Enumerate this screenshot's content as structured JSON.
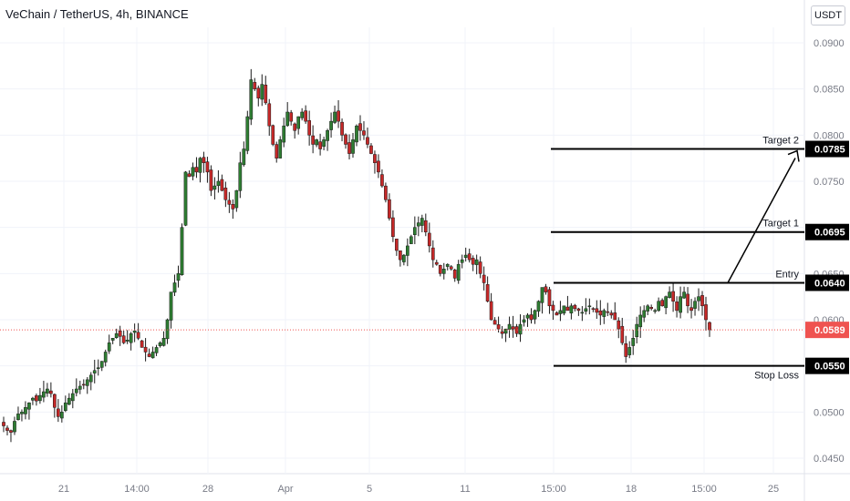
{
  "header": {
    "title": "VeChain / TetherUS, 4h, BINANCE",
    "currency_button": "USDT"
  },
  "colors": {
    "up": "#26a69a",
    "down": "#ef5350",
    "up_body": "#2e7d32",
    "down_body": "#c62828",
    "grid": "#f0f3fa",
    "axis_text": "#787b86",
    "current_price": "#ef5350",
    "label_bg": "#000000",
    "label_text": "#ffffff"
  },
  "chart_data": {
    "type": "candlestick",
    "symbol": "VeChain / TetherUS",
    "interval": "4h",
    "exchange": "BINANCE",
    "y_ticks": [
      "0.0900",
      "0.0850",
      "0.0800",
      "0.0750",
      "0.0700",
      "0.0650",
      "0.0600",
      "0.0550",
      "0.0500",
      "0.0450"
    ],
    "x_ticks": [
      "21",
      "14:00",
      "28",
      "Apr",
      "5",
      "11",
      "15:00",
      "18",
      "15:00",
      "25"
    ],
    "current_price": "0.0589",
    "levels": [
      {
        "name": "Target 2",
        "price": "0.0785"
      },
      {
        "name": "Target 1",
        "price": "0.0695"
      },
      {
        "name": "Entry",
        "price": "0.0640"
      },
      {
        "name": "Stop Loss",
        "price": "0.0550"
      }
    ],
    "path_prices": [
      0.064,
      0.0785
    ],
    "close_path": [
      0.0485,
      0.048,
      0.0478,
      0.049,
      0.0498,
      0.05,
      0.0505,
      0.051,
      0.0515,
      0.0512,
      0.0518,
      0.0522,
      0.0525,
      0.052,
      0.0505,
      0.0495,
      0.05,
      0.051,
      0.0515,
      0.052,
      0.0525,
      0.0528,
      0.053,
      0.0535,
      0.054,
      0.0545,
      0.0548,
      0.0555,
      0.0565,
      0.0575,
      0.058,
      0.0585,
      0.0582,
      0.0575,
      0.0578,
      0.0585,
      0.0588,
      0.058,
      0.057,
      0.0565,
      0.056,
      0.0565,
      0.057,
      0.0575,
      0.058,
      0.06,
      0.063,
      0.064,
      0.065,
      0.07,
      0.076,
      0.0755,
      0.0765,
      0.076,
      0.0775,
      0.077,
      0.076,
      0.074,
      0.0745,
      0.075,
      0.074,
      0.073,
      0.0725,
      0.072,
      0.074,
      0.077,
      0.0785,
      0.082,
      0.086,
      0.085,
      0.084,
      0.0855,
      0.0835,
      0.081,
      0.079,
      0.0775,
      0.0795,
      0.081,
      0.0825,
      0.0815,
      0.0805,
      0.082,
      0.0825,
      0.0815,
      0.08,
      0.079,
      0.0795,
      0.0785,
      0.0795,
      0.0805,
      0.0815,
      0.0825,
      0.0815,
      0.08,
      0.079,
      0.078,
      0.0795,
      0.081,
      0.0805,
      0.08,
      0.079,
      0.078,
      0.077,
      0.076,
      0.0745,
      0.073,
      0.071,
      0.069,
      0.0675,
      0.0665,
      0.067,
      0.068,
      0.069,
      0.07,
      0.0705,
      0.071,
      0.0695,
      0.068,
      0.0665,
      0.066,
      0.065,
      0.0655,
      0.066,
      0.0655,
      0.0645,
      0.066,
      0.0665,
      0.067,
      0.0665,
      0.066,
      0.0665,
      0.065,
      0.064,
      0.062,
      0.06,
      0.0595,
      0.059,
      0.0585,
      0.059,
      0.0595,
      0.059,
      0.0585,
      0.0595,
      0.06,
      0.0605,
      0.06,
      0.061,
      0.062,
      0.0635,
      0.063,
      0.0615,
      0.061,
      0.0605,
      0.061,
      0.0615,
      0.061,
      0.0615,
      0.0612,
      0.061,
      0.0608,
      0.0612,
      0.0615,
      0.0612,
      0.0608,
      0.0605,
      0.061,
      0.0608,
      0.0605,
      0.06,
      0.059,
      0.0575,
      0.056,
      0.057,
      0.058,
      0.0595,
      0.0605,
      0.061,
      0.0615,
      0.0612,
      0.061,
      0.062,
      0.0615,
      0.0625,
      0.063,
      0.062,
      0.061,
      0.0625,
      0.063,
      0.0615,
      0.061,
      0.062,
      0.0625,
      0.0615,
      0.06,
      0.0589
    ]
  }
}
